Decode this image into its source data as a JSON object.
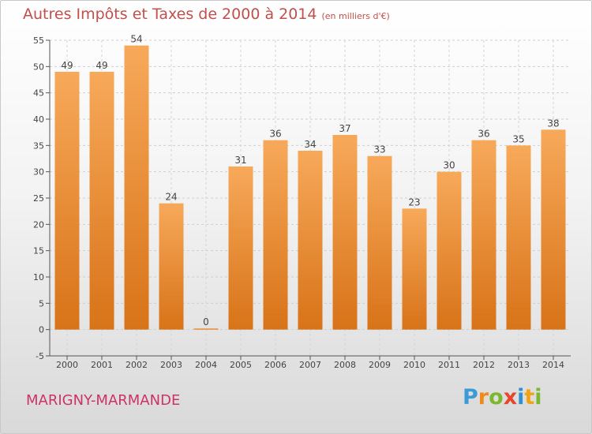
{
  "chart_data": {
    "type": "bar",
    "title": "Autres Impôts et Taxes de 2000 à 2014",
    "subtitle": "(en milliers d'€)",
    "categories": [
      "2000",
      "2001",
      "2002",
      "2003",
      "2004",
      "2005",
      "2006",
      "2007",
      "2008",
      "2009",
      "2010",
      "2011",
      "2012",
      "2013",
      "2014"
    ],
    "values": [
      49,
      49,
      54,
      24,
      0,
      31,
      36,
      34,
      37,
      33,
      23,
      30,
      36,
      35,
      38
    ],
    "ylim": [
      -5,
      55
    ],
    "yticks": [
      -5,
      0,
      5,
      10,
      15,
      20,
      25,
      30,
      35,
      40,
      45,
      50,
      55
    ],
    "grid": true,
    "colors": {
      "bar_light": "#f7a95a",
      "bar_dark": "#d87318",
      "title": "#c0504d"
    }
  },
  "commune": "MARIGNY-MARMANDE",
  "logo": {
    "letters": [
      "P",
      "r",
      "o",
      "x",
      "i",
      "t",
      "i"
    ],
    "colors": [
      "#3a9bd6",
      "#f28a1a",
      "#7cb82f",
      "#e8452c",
      "#2f8fd1",
      "#f2a313",
      "#7cb82f"
    ]
  }
}
